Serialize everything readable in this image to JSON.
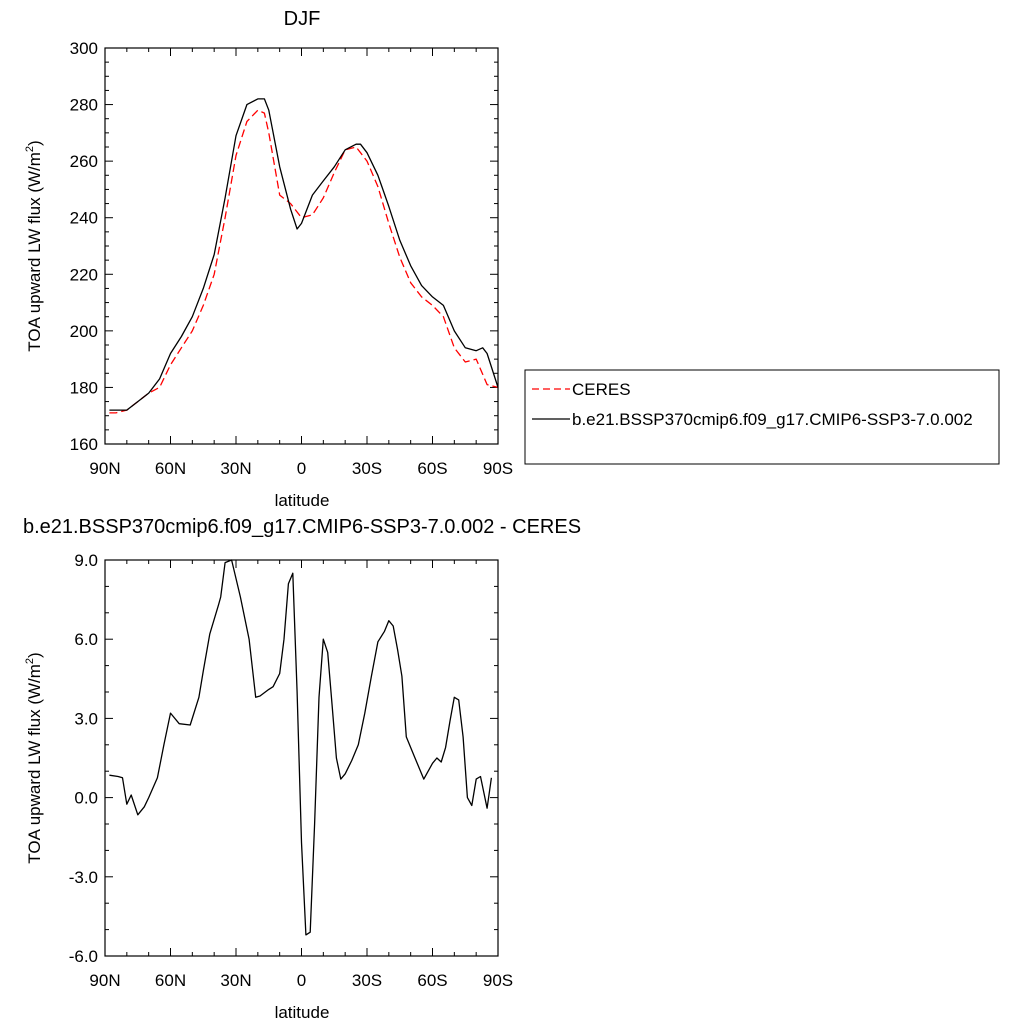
{
  "chart_data": [
    {
      "type": "line",
      "title": "DJF",
      "xlabel": "latitude",
      "ylabel": "TOA upward LW flux (W/m",
      "ylabel_sup": "2",
      "ylabel_close": ")",
      "xlim": [
        90,
        -90
      ],
      "ylim": [
        160,
        300
      ],
      "xticks": [
        90,
        60,
        30,
        0,
        -30,
        -60,
        -90
      ],
      "xtick_labels": [
        "90N",
        "60N",
        "30N",
        "0",
        "30S",
        "60S",
        "90S"
      ],
      "yticks": [
        160,
        180,
        200,
        220,
        240,
        260,
        280,
        300
      ],
      "ytick_labels": [
        "160",
        "180",
        "200",
        "220",
        "240",
        "260",
        "280",
        "300"
      ],
      "legend": "outside-right",
      "grid": false,
      "colors": {
        "CERES": "#ff0000",
        "model": "#000000"
      },
      "series": [
        {
          "name": "CERES",
          "style": "dashed",
          "x": [
            88,
            85,
            80,
            75,
            70,
            65,
            60,
            55,
            50,
            45,
            40,
            35,
            30,
            25,
            20,
            17,
            15,
            10,
            5,
            0,
            -5,
            -10,
            -15,
            -20,
            -25,
            -30,
            -35,
            -40,
            -45,
            -50,
            -55,
            -60,
            -65,
            -70,
            -75,
            -80,
            -85,
            -90
          ],
          "values": [
            171,
            171,
            172,
            175,
            178,
            180,
            188,
            194,
            200,
            209,
            220,
            240,
            262,
            274,
            278,
            277,
            270,
            248,
            245,
            240,
            241,
            247,
            256,
            264,
            265,
            260,
            251,
            238,
            226,
            217,
            212,
            209,
            205,
            194,
            189,
            190,
            181,
            180
          ]
        },
        {
          "name": "b.e21.BSSP370cmip6.f09_g17.CMIP6-SSP3-7.0.002",
          "style": "solid",
          "x": [
            88,
            85,
            80,
            75,
            70,
            65,
            60,
            55,
            50,
            45,
            40,
            35,
            30,
            25,
            20,
            17,
            15,
            10,
            5,
            2,
            0,
            -5,
            -10,
            -15,
            -20,
            -25,
            -27,
            -30,
            -35,
            -40,
            -45,
            -50,
            -55,
            -60,
            -65,
            -70,
            -75,
            -80,
            -83,
            -85,
            -90
          ],
          "values": [
            172,
            172,
            172,
            175,
            178,
            183,
            192,
            198,
            205,
            215,
            227,
            247,
            269,
            280,
            282,
            282,
            278,
            258,
            243,
            236,
            238,
            248,
            253,
            258,
            264,
            266,
            266,
            263,
            255,
            244,
            232,
            223,
            216,
            212,
            209,
            200,
            194,
            193,
            194,
            192,
            180
          ]
        }
      ]
    },
    {
      "type": "line",
      "title": "b.e21.BSSP370cmip6.f09_g17.CMIP6-SSP3-7.0.002 - CERES",
      "xlabel": "latitude",
      "ylabel": "TOA upward LW flux (W/m",
      "ylabel_sup": "2",
      "ylabel_close": ")",
      "xlim": [
        90,
        -90
      ],
      "ylim": [
        -6,
        9
      ],
      "xticks": [
        90,
        60,
        30,
        0,
        -30,
        -60,
        -90
      ],
      "xtick_labels": [
        "90N",
        "60N",
        "30N",
        "0",
        "30S",
        "60S",
        "90S"
      ],
      "yticks": [
        -6,
        -3,
        0,
        3,
        6,
        9
      ],
      "ytick_labels": [
        "-6.0",
        "-3.0",
        "0.0",
        "3.0",
        "6.0",
        "9.0"
      ],
      "grid": false,
      "colors": {
        "diff": "#000000"
      },
      "series": [
        {
          "style": "solid",
          "x": [
            88,
            84,
            82,
            80,
            78,
            75,
            72,
            70,
            66,
            63,
            60,
            56,
            51,
            47,
            45,
            42,
            38,
            37,
            35,
            32,
            28,
            24,
            21,
            19,
            15,
            13,
            10,
            8,
            6,
            4,
            2,
            0,
            -2,
            -4,
            -6,
            -8,
            -10,
            -12,
            -14,
            -16,
            -18,
            -20,
            -23,
            -26,
            -29,
            -32,
            -35,
            -38,
            -40,
            -42,
            -44,
            -46,
            -48,
            -52,
            -56,
            -60,
            -62,
            -64,
            -66,
            -68,
            -70,
            -72,
            -74,
            -76,
            -78,
            -80,
            -82,
            -85,
            -87
          ],
          "values": [
            0.85,
            0.8,
            0.75,
            -0.25,
            0.1,
            -0.65,
            -0.35,
            0.0,
            0.75,
            2.0,
            3.2,
            2.8,
            2.75,
            3.8,
            4.8,
            6.2,
            7.3,
            7.6,
            8.9,
            9.0,
            7.6,
            6.0,
            3.8,
            3.85,
            4.1,
            4.2,
            4.7,
            6.0,
            8.1,
            8.5,
            4.0,
            -1.7,
            -5.2,
            -5.1,
            -1.0,
            3.8,
            6.0,
            5.5,
            3.5,
            1.5,
            0.7,
            0.9,
            1.4,
            2.0,
            3.2,
            4.6,
            5.9,
            6.3,
            6.7,
            6.5,
            5.6,
            4.6,
            2.3,
            1.5,
            0.7,
            1.3,
            1.5,
            1.35,
            1.9,
            2.9,
            3.8,
            3.7,
            2.3,
            0.0,
            -0.3,
            0.7,
            0.8,
            -0.4,
            0.75
          ]
        }
      ]
    }
  ]
}
